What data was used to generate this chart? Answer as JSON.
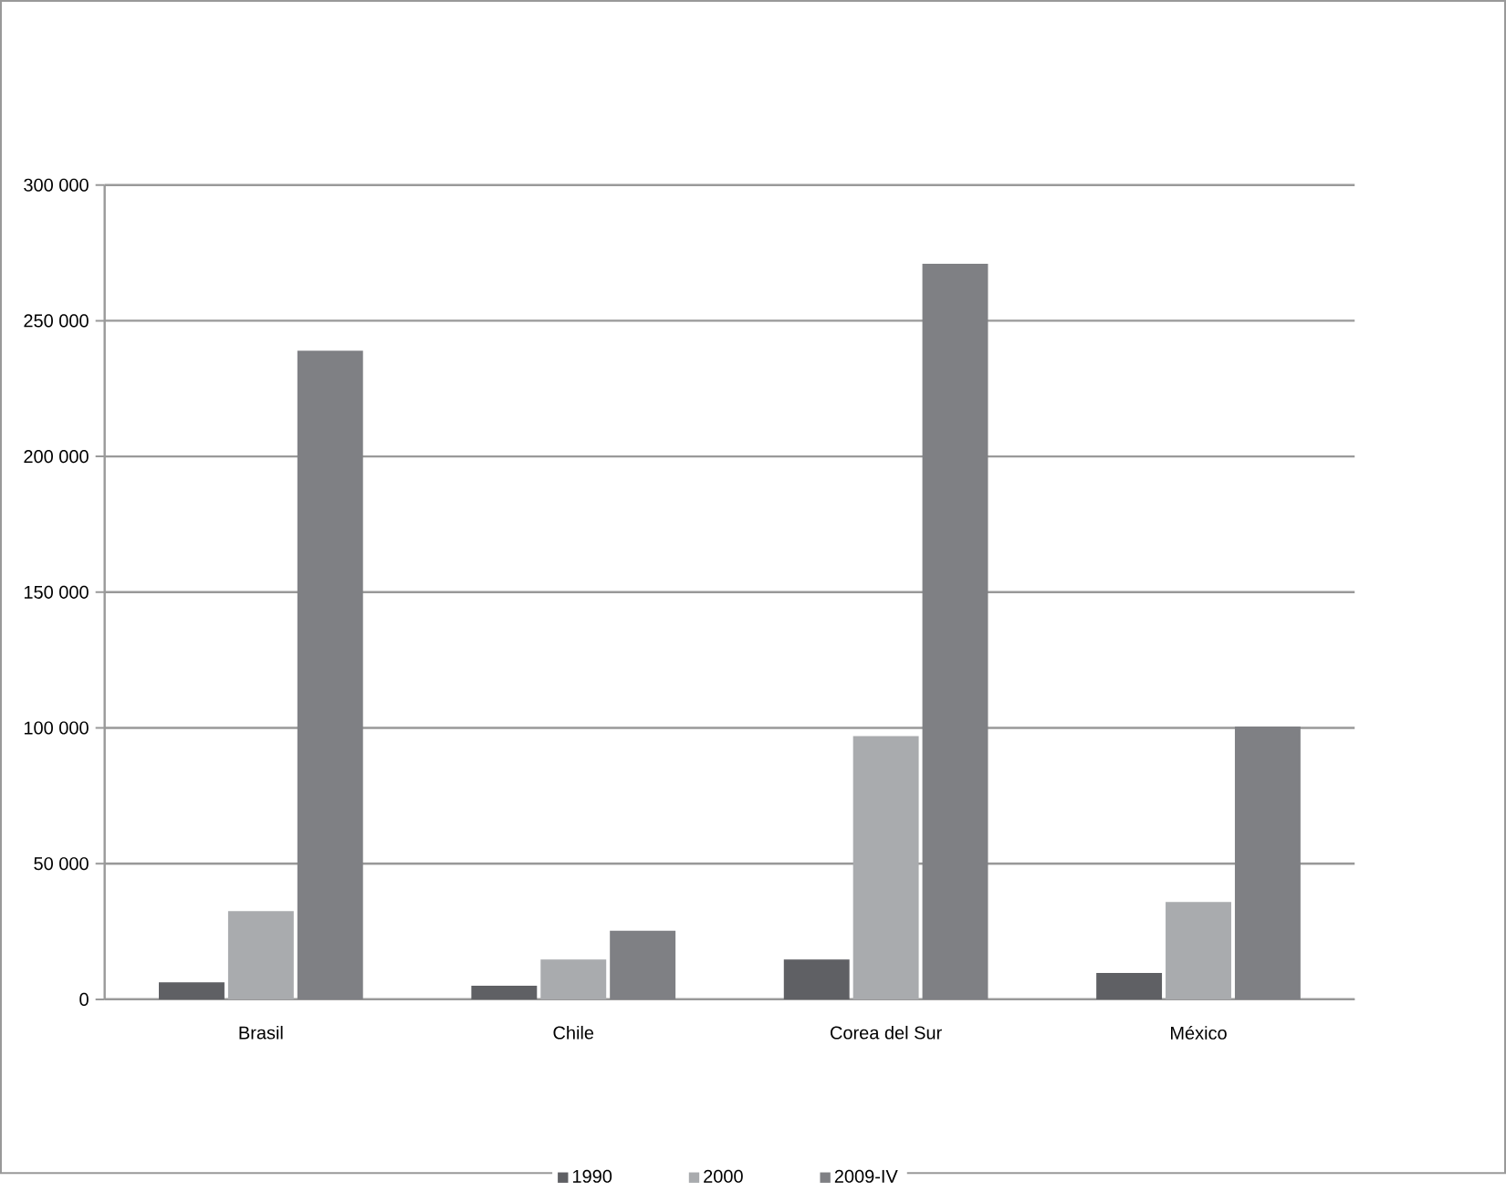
{
  "chart_data": {
    "type": "bar",
    "categories": [
      "Brasil",
      "Chile",
      "Corea del Sur",
      "México"
    ],
    "series": [
      {
        "name": "1990",
        "color": "#5f6064",
        "values": [
          6300,
          5000,
          14700,
          9700
        ]
      },
      {
        "name": "2000",
        "color": "#a9abae",
        "values": [
          32500,
          14700,
          97000,
          35900
        ]
      },
      {
        "name": "2009-IV",
        "color": "#7f8084",
        "values": [
          239000,
          25300,
          271000,
          100500
        ]
      }
    ],
    "ylim": [
      0,
      300000
    ],
    "yticks": [
      0,
      {
        "value": 50000,
        "label": "50 000"
      },
      {
        "value": 100000,
        "label": "100 000"
      },
      {
        "value": 150000,
        "label": "150 000"
      },
      {
        "value": 200000,
        "label": "200 000"
      },
      {
        "value": 250000,
        "label": "250 000"
      },
      {
        "value": 300000,
        "label": "300 000"
      }
    ],
    "grid": "y",
    "legend": "bottom"
  }
}
